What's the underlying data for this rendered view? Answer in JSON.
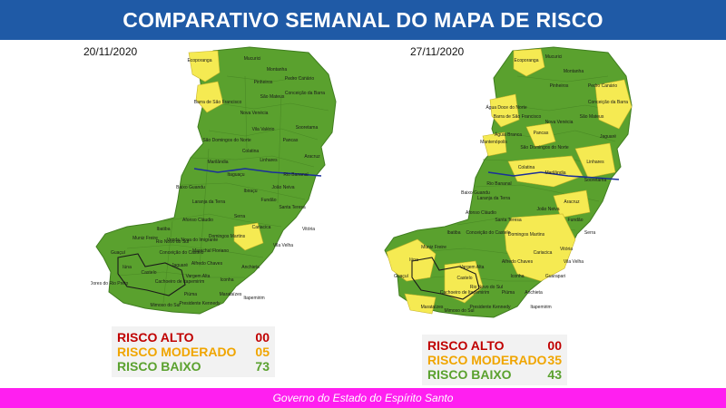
{
  "title": "COMPARATIVO SEMANAL DO MAPA DE RISCO",
  "footer": "Governo do Estado do Espírito Santo",
  "colors": {
    "header": "#1f5aa6",
    "footer": "#ff1ff0",
    "low": "#5aa12e",
    "moderate": "#f5ea52",
    "high": "#c00000",
    "river": "#1a2f9a"
  },
  "maps": [
    {
      "date": "20/11/2020",
      "labels": [
        "Ecoporanga",
        "Mucurici",
        "Montanha",
        "Pinheiros",
        "Pedro Canário",
        "Conceição da Barra",
        "São Mateus",
        "Nova Venécia",
        "Barra de São Francisco",
        "Vila Valério",
        "Pancas",
        "São Domingos do Norte",
        "Colatina",
        "Marilândia",
        "Linhares",
        "Aracruz",
        "João Neiva",
        "Ibiraçu",
        "Fundão",
        "Santa Teresa",
        "Serra",
        "Vitória",
        "Cariacica",
        "Vila Velha",
        "Domingos Martins",
        "Marechal Floriano",
        "Alfredo Chaves",
        "Anchieta",
        "Iconha",
        "Piúma",
        "Castelo",
        "Cachoeiro de Itapemirim",
        "Mimoso do Sul",
        "Presidente Kennedy",
        "Iúna",
        "Guaçuí",
        "Dores do Rio Preto",
        "Muniz Freire",
        "Ibatiba",
        "Itapemirim",
        "Marataízes",
        "Conceição do Castelo",
        "Venda Nova do Imigrante",
        "Afonso Cláudio",
        "Laranja da Terra",
        "Baixo Guandu",
        "Itaguaçu",
        "Rio Bananal",
        "Sooretama",
        "Jaguaré",
        "Vargem Alta",
        "Rio Novo do Sul"
      ],
      "legend": [
        {
          "label": "RISCO ALTO",
          "value": "00",
          "color": "#c00000"
        },
        {
          "label": "RISCO MODERADO",
          "value": "05",
          "color": "#f0a500"
        },
        {
          "label": "RISCO BAIXO",
          "value": "73",
          "color": "#5aa12e"
        }
      ]
    },
    {
      "date": "27/11/2020",
      "labels": [
        "Ecoporanga",
        "Mucurici",
        "Montanha",
        "Pinheiros",
        "Pedro Canário",
        "Conceição da Barra",
        "Água Doce do Norte",
        "São Mateus",
        "Nova Venécia",
        "Barra de São Francisco",
        "Mantenópolis",
        "Águia Branca",
        "Pancas",
        "Colatina",
        "Marilândia",
        "Linhares",
        "São Domingos do Norte",
        "Aracruz",
        "João Neiva",
        "Fundão",
        "Serra",
        "Vitória",
        "Vila Velha",
        "Cariacica",
        "Guarapari",
        "Domingos Martins",
        "Alfredo Chaves",
        "Anchieta",
        "Piúma",
        "Iconha",
        "Castelo",
        "Cachoeiro de Itapemirim",
        "Mimoso do Sul",
        "Presidente Kennedy",
        "Itapemirim",
        "Marataízes",
        "Iúna",
        "Guaçuí",
        "Muniz Freire",
        "Ibatiba",
        "Conceição do Castelo",
        "Afonso Cláudio",
        "Laranja da Terra",
        "Santa Teresa",
        "Baixo Guandu",
        "Rio Bananal",
        "Sooretama",
        "Jaguaré",
        "Vargem Alta",
        "Rio Novo do Sul"
      ],
      "legend": [
        {
          "label": "RISCO ALTO",
          "value": "00",
          "color": "#c00000"
        },
        {
          "label": "RISCO MODERADO",
          "value": "35",
          "color": "#f0a500"
        },
        {
          "label": "RISCO BAIXO",
          "value": "43",
          "color": "#5aa12e"
        }
      ]
    }
  ]
}
